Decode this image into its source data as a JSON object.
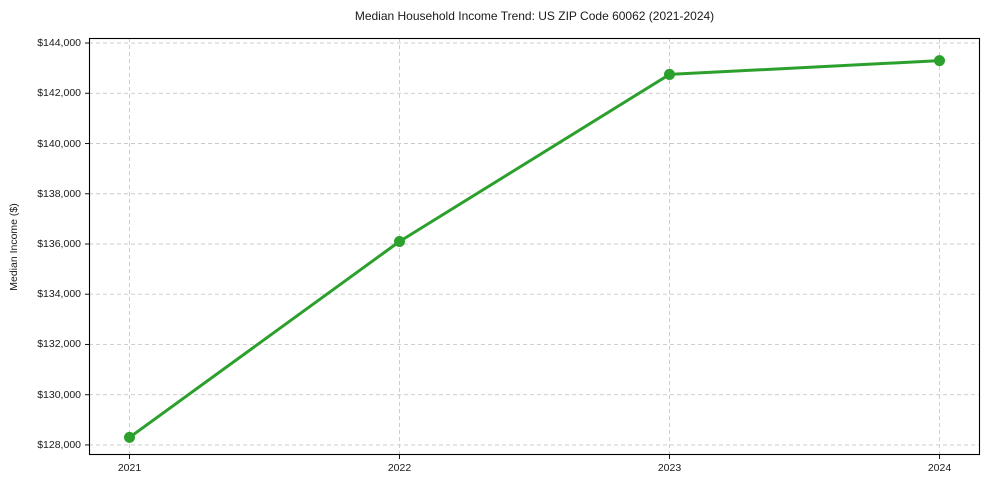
{
  "chart_data": {
    "type": "line",
    "title": "Median Household Income Trend: US ZIP Code 60062 (2021-2024)",
    "xlabel": "",
    "ylabel": "Median Income ($)",
    "x": [
      2021,
      2022,
      2023,
      2024
    ],
    "series": [
      {
        "name": "Median Household Income",
        "values": [
          128300,
          136100,
          142750,
          143300
        ]
      }
    ],
    "xticks": [
      2021,
      2022,
      2023,
      2024
    ],
    "xtick_labels": [
      "2021",
      "2022",
      "2023",
      "2024"
    ],
    "yticks": [
      128000,
      130000,
      132000,
      134000,
      136000,
      138000,
      140000,
      142000,
      144000
    ],
    "ytick_labels": [
      "$128,000",
      "$130,000",
      "$132,000",
      "$134,000",
      "$136,000",
      "$138,000",
      "$140,000",
      "$142,000",
      "$144,000"
    ],
    "xlim": [
      2020.85,
      2024.15
    ],
    "ylim": [
      127600,
      144200
    ],
    "grid": true,
    "grid_style": "dashed",
    "legend": "none",
    "colors": {
      "line": "#2ca02c",
      "marker": "#2ca02c",
      "grid": "#c9c9c9",
      "axis": "#000000",
      "text": "#1a1a1a",
      "background": "#ffffff"
    },
    "marker": "circle",
    "marker_radius": 5.5,
    "line_width": 3
  }
}
